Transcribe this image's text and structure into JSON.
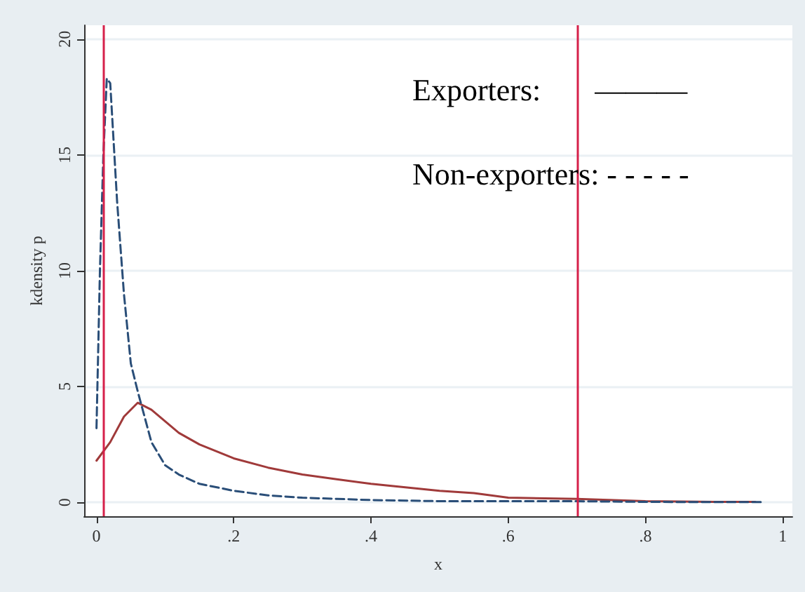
{
  "chart_data": {
    "type": "line",
    "xlabel": "x",
    "ylabel": "kdensity p",
    "annotations": [
      "Exporters:       ———",
      "Non-exporters: - - - - -"
    ],
    "xlim": [
      -0.018,
      1.014
    ],
    "ylim": [
      -0.6,
      20.6
    ],
    "xticks": [
      {
        "value": 0,
        "label": "0"
      },
      {
        "value": 0.2,
        "label": ".2"
      },
      {
        "value": 0.4,
        "label": ".4"
      },
      {
        "value": 0.6,
        "label": ".6"
      },
      {
        "value": 0.8,
        "label": ".8"
      },
      {
        "value": 1,
        "label": "1"
      }
    ],
    "yticks": [
      0,
      5,
      10,
      15,
      20
    ],
    "grid": "y",
    "marker": "none",
    "ref_lines": [
      {
        "axis": "x",
        "value": 0.012,
        "color": "#d6204a"
      },
      {
        "axis": "x",
        "value": 0.7,
        "color": "#d6204a"
      }
    ],
    "series": [
      {
        "color": "#a03a3a",
        "line_style": "solid",
        "x": [
          0,
          0.02,
          0.04,
          0.06,
          0.08,
          0.1,
          0.12,
          0.15,
          0.2,
          0.25,
          0.3,
          0.35,
          0.4,
          0.45,
          0.5,
          0.55,
          0.6,
          0.7,
          0.8,
          0.9,
          0.96
        ],
        "values": [
          1.8,
          2.6,
          3.7,
          4.3,
          4.0,
          3.5,
          3.0,
          2.5,
          1.9,
          1.5,
          1.2,
          1.0,
          0.8,
          0.65,
          0.5,
          0.4,
          0.2,
          0.15,
          0.05,
          0.02,
          0.02
        ]
      },
      {
        "color": "#2a4e78",
        "line_style": "dashed",
        "x": [
          0,
          0.005,
          0.01,
          0.015,
          0.02,
          0.03,
          0.04,
          0.05,
          0.06,
          0.07,
          0.08,
          0.1,
          0.12,
          0.15,
          0.2,
          0.25,
          0.3,
          0.35,
          0.4,
          0.5,
          0.6,
          0.7,
          0.8,
          0.9,
          0.97
        ],
        "values": [
          3.2,
          10,
          15,
          18.3,
          18.1,
          13,
          9,
          6,
          4.8,
          3.7,
          2.6,
          1.6,
          1.2,
          0.8,
          0.5,
          0.3,
          0.2,
          0.15,
          0.1,
          0.05,
          0.05,
          0.05,
          0.02,
          0.01,
          0.01
        ]
      }
    ]
  }
}
